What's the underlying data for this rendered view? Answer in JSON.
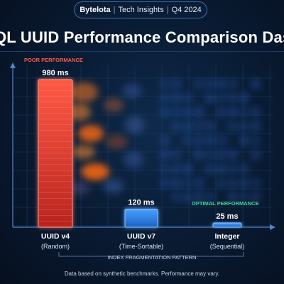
{
  "header": {
    "brand": "Bytelota",
    "section": "Tech Insights",
    "period": "Q4 2024"
  },
  "title": "QL UUID Performance Comparison Dashboard",
  "annotations": {
    "poor": "POOR PERFORMANCE",
    "optimal": "OPTIMAL PERFORMANCE",
    "fragmentation": "INDEX FRAGMENTATION PATTERN"
  },
  "footer": "Data based on synthetic benchmarks. Performance may vary.",
  "colors": {
    "poor": "#e2342b",
    "good": "#2f86e6",
    "poor_label": "#ff5a4a",
    "optimal_label": "#46d68a"
  },
  "chart_data": {
    "type": "bar",
    "categories": [
      "UUID v4",
      "UUID v7",
      "Integer"
    ],
    "subcategories": [
      "(Random)",
      "(Time-Sortable)",
      "(Sequential)"
    ],
    "values": [
      980,
      120,
      25
    ],
    "value_labels": [
      "980 ms",
      "120 ms",
      "25 ms"
    ],
    "unit": "ms",
    "ylim": [
      0,
      1100
    ],
    "grid": true,
    "legend": "none"
  }
}
